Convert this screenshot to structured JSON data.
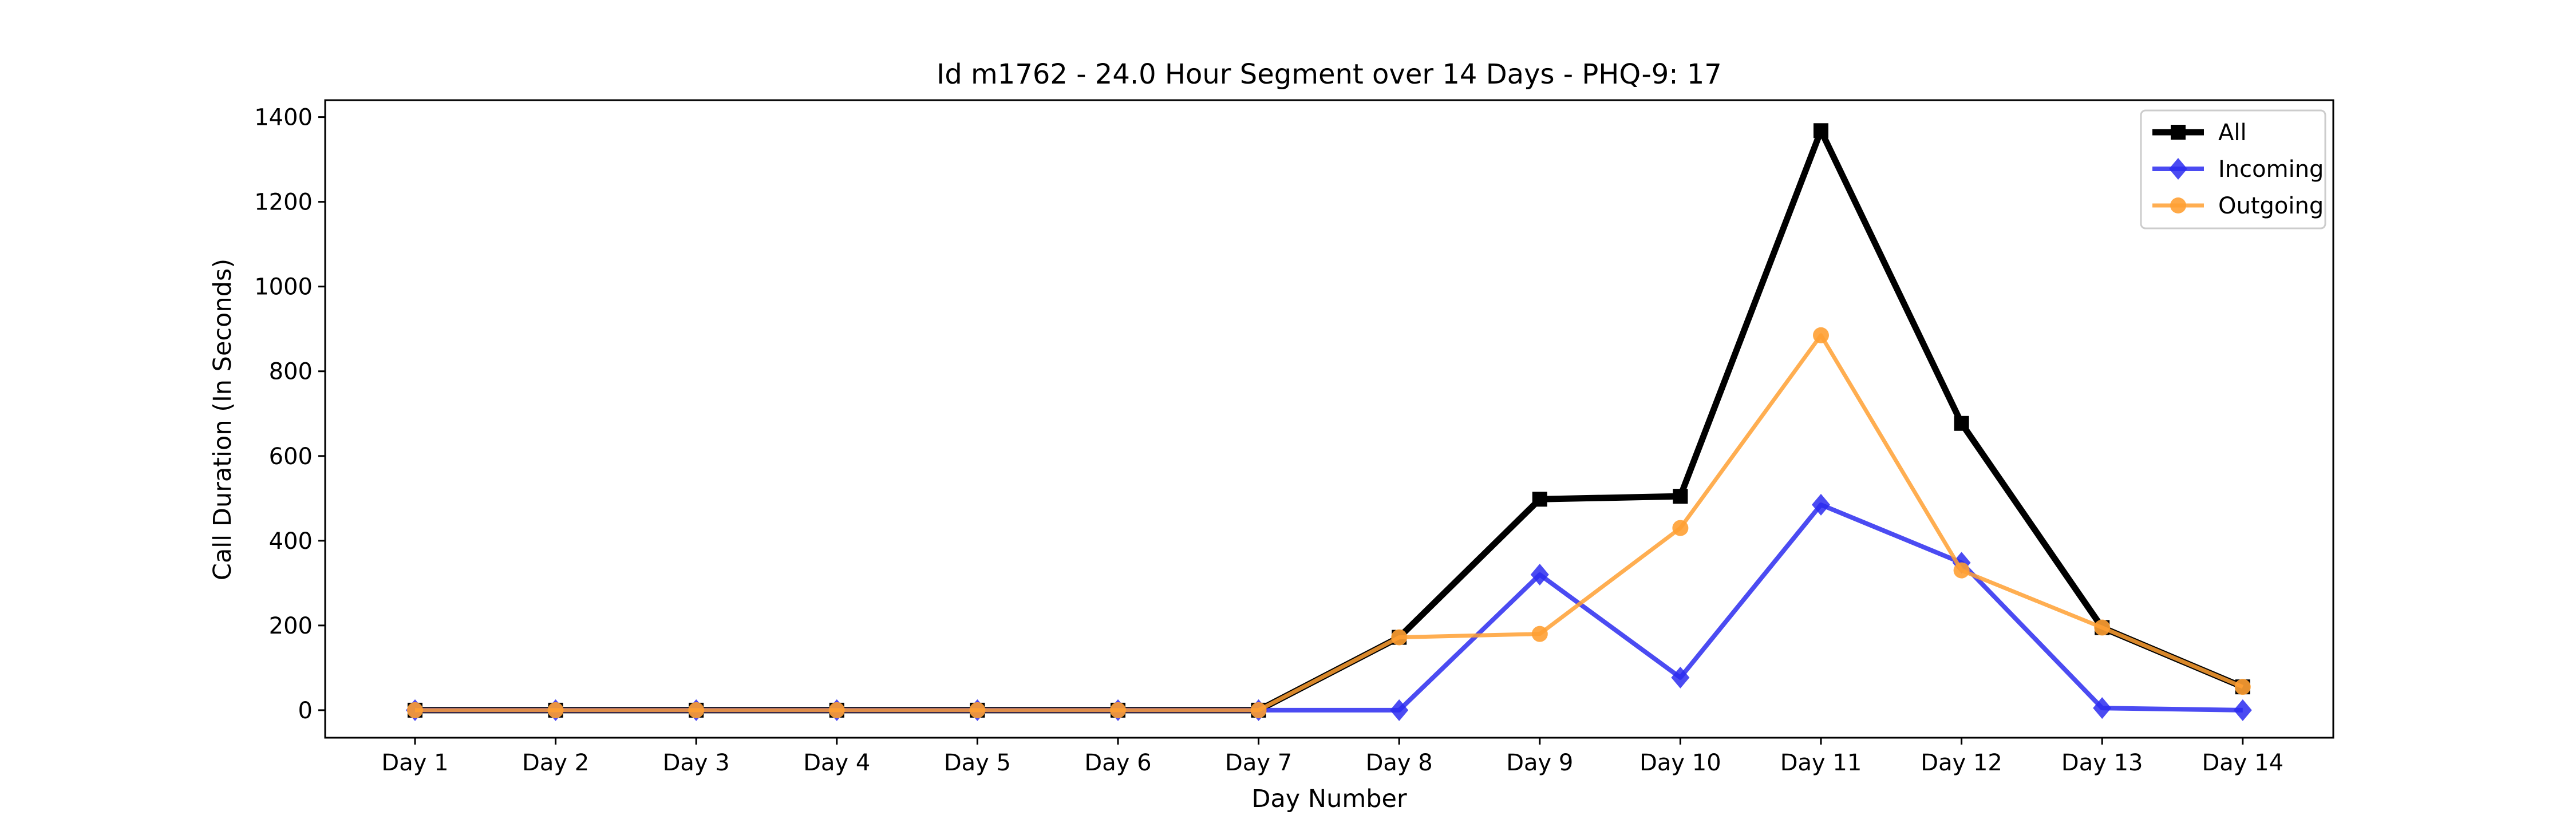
{
  "chart_data": {
    "type": "line",
    "title": "Id m1762 - 24.0 Hour Segment over 14 Days - PHQ-9: 17",
    "xlabel": "Day Number",
    "ylabel": "Call Duration (In Seconds)",
    "categories": [
      "Day 1",
      "Day 2",
      "Day 3",
      "Day 4",
      "Day 5",
      "Day 6",
      "Day 7",
      "Day 8",
      "Day 9",
      "Day 10",
      "Day 11",
      "Day 12",
      "Day 13",
      "Day 14"
    ],
    "ylim": [
      -65,
      1440
    ],
    "yticks": [
      0,
      200,
      400,
      600,
      800,
      1000,
      1200,
      1400
    ],
    "grid": false,
    "legend": "top-right",
    "series": [
      {
        "name": "All",
        "color": "#000000",
        "marker": "square",
        "values": [
          0,
          0,
          0,
          0,
          0,
          0,
          0,
          172,
          498,
          505,
          1368,
          677,
          195,
          55
        ]
      },
      {
        "name": "Incoming",
        "color": "#2b2bf0",
        "marker": "diamond",
        "values": [
          0,
          0,
          0,
          0,
          0,
          0,
          0,
          0,
          320,
          77,
          485,
          348,
          5,
          0
        ]
      },
      {
        "name": "Outgoing",
        "color": "#ffa033",
        "marker": "circle",
        "values": [
          0,
          0,
          0,
          0,
          0,
          0,
          0,
          172,
          180,
          430,
          885,
          330,
          195,
          55
        ]
      }
    ]
  }
}
